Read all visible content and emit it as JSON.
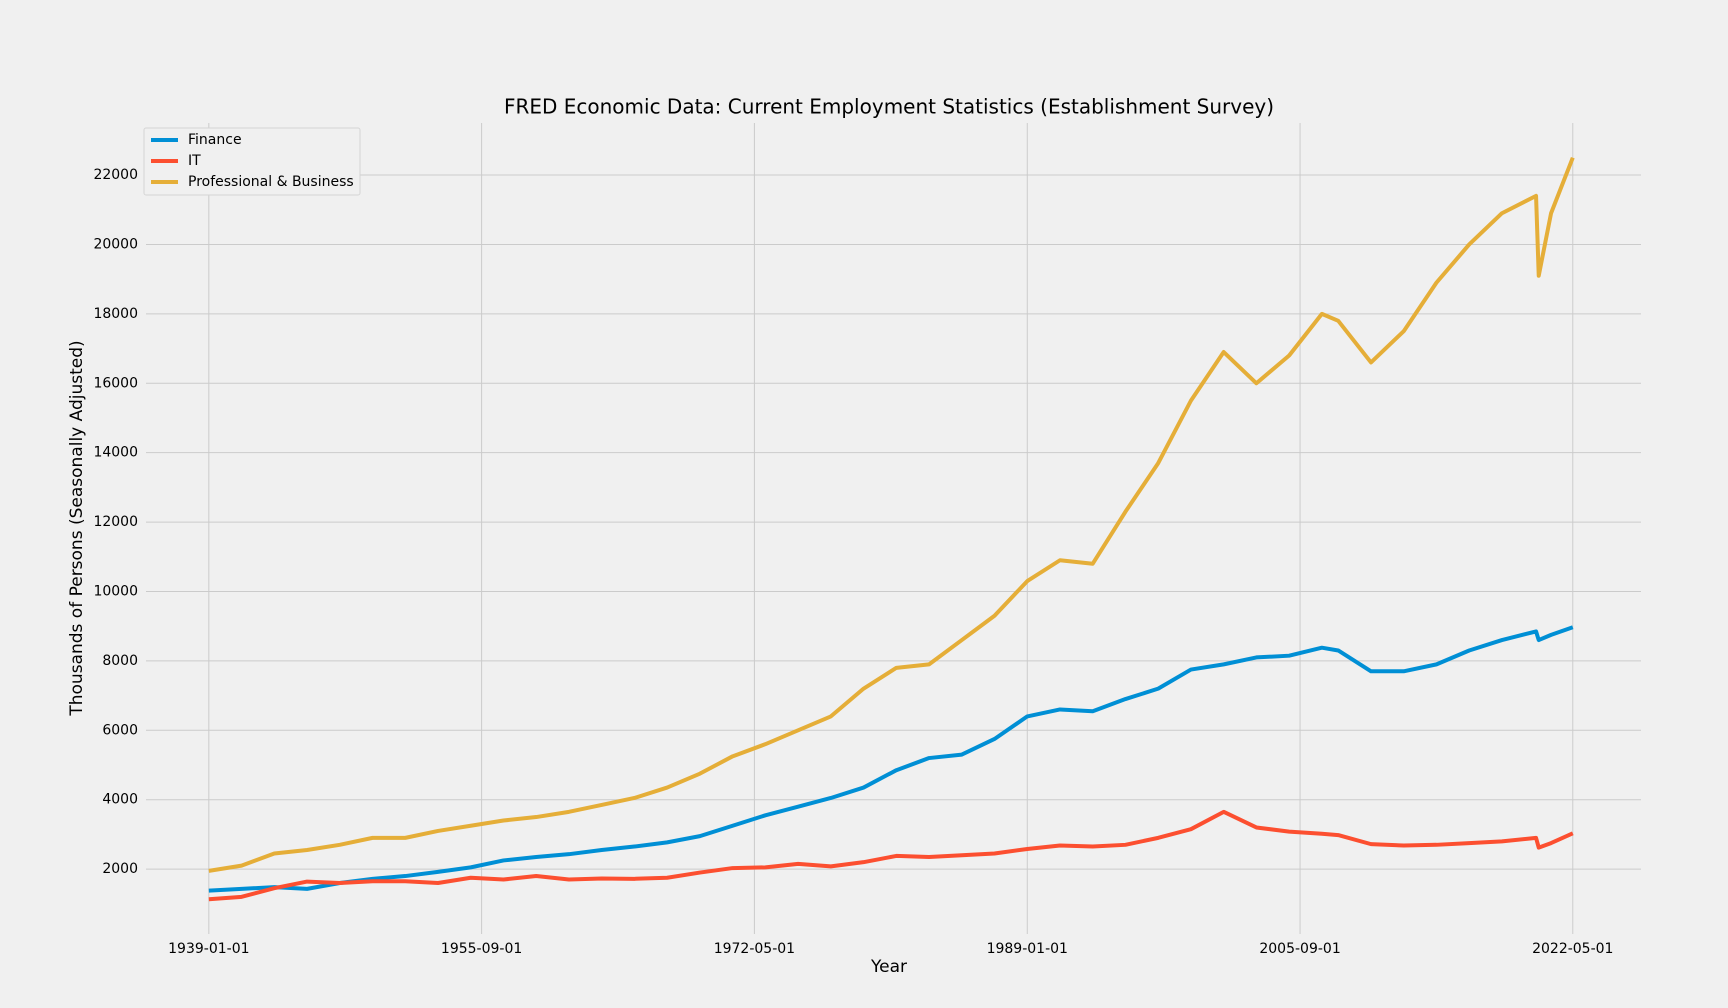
{
  "chart_data": {
    "type": "line",
    "title": "FRED Economic Data: Current Employment Statistics (Establishment Survey)",
    "x_label": "Year",
    "y_label": "Thousands of Persons (Seasonally Adjusted)",
    "x": [
      "1939-01-01",
      "1941-01-01",
      "1943-01-01",
      "1945-01-01",
      "1947-01-01",
      "1949-01-01",
      "1951-01-01",
      "1953-01-01",
      "1955-01-01",
      "1957-01-01",
      "1959-01-01",
      "1961-01-01",
      "1963-01-01",
      "1965-01-01",
      "1967-01-01",
      "1969-01-01",
      "1971-01-01",
      "1973-01-01",
      "1975-01-01",
      "1977-01-01",
      "1979-01-01",
      "1981-01-01",
      "1983-01-01",
      "1985-01-01",
      "1987-01-01",
      "1989-01-01",
      "1991-01-01",
      "1993-01-01",
      "1995-01-01",
      "1997-01-01",
      "1999-01-01",
      "2001-01-01",
      "2003-01-01",
      "2005-01-01",
      "2007-01-01",
      "2008-01-01",
      "2010-01-01",
      "2012-01-01",
      "2014-01-01",
      "2016-01-01",
      "2018-01-01",
      "2020-02-01",
      "2020-04-01",
      "2021-01-01",
      "2022-05-01"
    ],
    "series": [
      {
        "name": "Finance",
        "color": "#008fd5",
        "values": [
          1380,
          1430,
          1480,
          1430,
          1600,
          1720,
          1800,
          1920,
          2050,
          2250,
          2350,
          2430,
          2550,
          2650,
          2770,
          2950,
          3250,
          3550,
          3800,
          4050,
          4350,
          4850,
          5200,
          5300,
          5750,
          6400,
          6600,
          6550,
          6900,
          7200,
          7750,
          7900,
          8100,
          8150,
          8380,
          8300,
          7700,
          7700,
          7900,
          8300,
          8600,
          8850,
          8600,
          8750,
          8970
        ]
      },
      {
        "name": "IT",
        "color": "#fc4f30",
        "values": [
          1130,
          1200,
          1450,
          1640,
          1600,
          1650,
          1650,
          1600,
          1750,
          1700,
          1800,
          1700,
          1730,
          1720,
          1750,
          1900,
          2030,
          2050,
          2150,
          2080,
          2200,
          2380,
          2350,
          2400,
          2450,
          2580,
          2680,
          2650,
          2700,
          2900,
          3150,
          3650,
          3200,
          3080,
          3020,
          2980,
          2720,
          2680,
          2700,
          2750,
          2800,
          2900,
          2620,
          2750,
          3030
        ]
      },
      {
        "name": "Professional & Business",
        "color": "#e5ae38",
        "values": [
          1950,
          2100,
          2450,
          2550,
          2700,
          2900,
          2900,
          3100,
          3250,
          3400,
          3500,
          3650,
          3850,
          4050,
          4350,
          4750,
          5250,
          5600,
          6000,
          6400,
          7200,
          7800,
          7900,
          8600,
          9300,
          10300,
          10900,
          10800,
          12300,
          13700,
          15500,
          16900,
          16000,
          16800,
          18000,
          17800,
          16600,
          17500,
          18900,
          20000,
          20900,
          21400,
          19100,
          20900,
          22500
        ]
      }
    ],
    "xlim": [
      "1935-03-01",
      "2026-07-01"
    ],
    "xticks": [
      "1939-01-01",
      "1955-09-01",
      "1972-05-01",
      "1989-01-01",
      "2005-09-01",
      "2022-05-01"
    ],
    "ylim": [
      130,
      23500
    ],
    "yticks": [
      2000,
      4000,
      6000,
      8000,
      10000,
      12000,
      14000,
      16000,
      18000,
      20000,
      22000
    ],
    "grid": true,
    "legend": "upper left"
  }
}
